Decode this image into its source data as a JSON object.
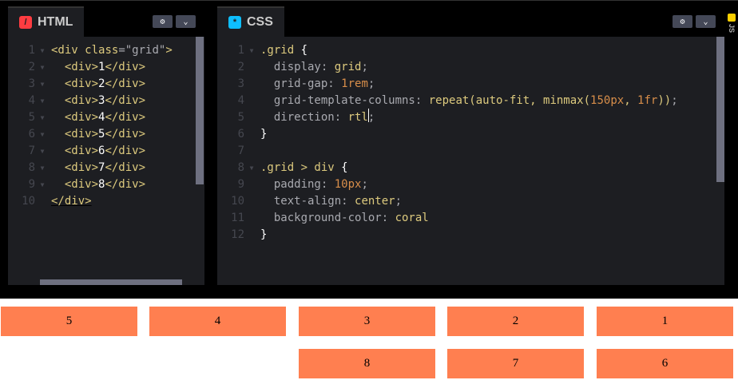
{
  "html_panel": {
    "title": "HTML",
    "icon": "html-slash-icon",
    "badge_color": "#ff3c41",
    "lines": [
      [
        [
          "t",
          "<div "
        ],
        [
          "a",
          "class"
        ],
        [
          "tx",
          "="
        ],
        [
          "s",
          "\"grid\""
        ],
        [
          "t",
          ">"
        ]
      ],
      [
        [
          "t",
          "  <div>"
        ],
        [
          "w",
          "1"
        ],
        [
          "t",
          "</div>"
        ]
      ],
      [
        [
          "t",
          "  <div>"
        ],
        [
          "w",
          "2"
        ],
        [
          "t",
          "</div>"
        ]
      ],
      [
        [
          "t",
          "  <div>"
        ],
        [
          "w",
          "3"
        ],
        [
          "t",
          "</div>"
        ]
      ],
      [
        [
          "t",
          "  <div>"
        ],
        [
          "w",
          "4"
        ],
        [
          "t",
          "</div>"
        ]
      ],
      [
        [
          "t",
          "  <div>"
        ],
        [
          "w",
          "5"
        ],
        [
          "t",
          "</div>"
        ]
      ],
      [
        [
          "t",
          "  <div>"
        ],
        [
          "w",
          "6"
        ],
        [
          "t",
          "</div>"
        ]
      ],
      [
        [
          "t",
          "  <div>"
        ],
        [
          "w",
          "7"
        ],
        [
          "t",
          "</div>"
        ]
      ],
      [
        [
          "t",
          "  <div>"
        ],
        [
          "w",
          "8"
        ],
        [
          "t",
          "</div>"
        ]
      ],
      [
        [
          "t",
          "</div>"
        ]
      ]
    ],
    "folds": [
      1,
      2,
      3,
      4,
      5,
      6,
      7,
      8,
      9
    ]
  },
  "css_panel": {
    "title": "CSS",
    "icon": "css-star-icon",
    "badge_color": "#0ebeff",
    "lines": [
      [
        [
          "v",
          ".grid "
        ],
        [
          "w",
          "{"
        ]
      ],
      [
        [
          "p",
          "  display"
        ],
        [
          "tx",
          ": "
        ],
        [
          "v",
          "grid"
        ],
        [
          "tx",
          ";"
        ]
      ],
      [
        [
          "p",
          "  grid-gap"
        ],
        [
          "tx",
          ": "
        ],
        [
          "n",
          "1rem"
        ],
        [
          "tx",
          ";"
        ]
      ],
      [
        [
          "p",
          "  grid-template-columns"
        ],
        [
          "tx",
          ": "
        ],
        [
          "v",
          "repeat(auto-fit, minmax("
        ],
        [
          "n",
          "150px"
        ],
        [
          "v",
          ", "
        ],
        [
          "n",
          "1fr"
        ],
        [
          "v",
          "))"
        ],
        [
          "tx",
          ";"
        ]
      ],
      [
        [
          "p",
          "  direction"
        ],
        [
          "tx",
          ": "
        ],
        [
          "v",
          "rtl"
        ],
        [
          "tx",
          ";"
        ]
      ],
      [
        [
          "w",
          "}"
        ]
      ],
      [],
      [
        [
          "v",
          ".grid > div "
        ],
        [
          "w",
          "{"
        ]
      ],
      [
        [
          "p",
          "  padding"
        ],
        [
          "tx",
          ": "
        ],
        [
          "n",
          "10px"
        ],
        [
          "tx",
          ";"
        ]
      ],
      [
        [
          "p",
          "  text-align"
        ],
        [
          "tx",
          ": "
        ],
        [
          "v",
          "center"
        ],
        [
          "tx",
          ";"
        ]
      ],
      [
        [
          "p",
          "  background-color"
        ],
        [
          "tx",
          ": "
        ],
        [
          "v",
          "coral"
        ]
      ],
      [
        [
          "w",
          "}"
        ]
      ]
    ],
    "folds": [
      1,
      8
    ]
  },
  "js_panel": {
    "title": "JS",
    "badge_color": "#fcd000"
  },
  "preview": {
    "cells": [
      "1",
      "2",
      "3",
      "4",
      "5",
      "6",
      "7",
      "8"
    ],
    "cell_color": "coral",
    "direction": "rtl"
  }
}
